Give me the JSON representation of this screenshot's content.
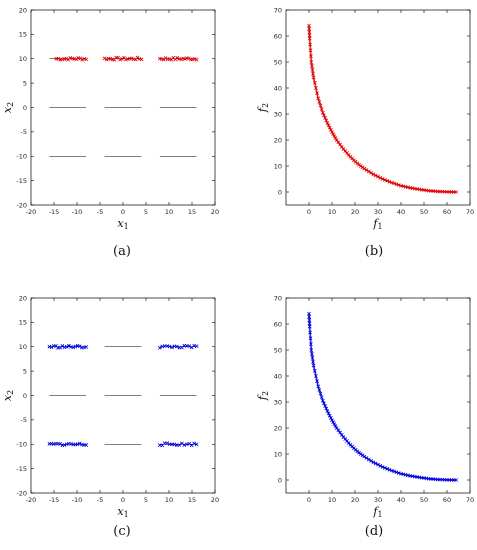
{
  "chart_data": [
    {
      "type": "scatter",
      "panel_label": "(a)",
      "xlabel": "x",
      "xlabel_sub": "1",
      "ylabel": "x",
      "ylabel_sub": "2",
      "xlim": [
        -20,
        20
      ],
      "ylim": [
        -20,
        20
      ],
      "xticks": [
        -20,
        -15,
        -10,
        -5,
        0,
        5,
        10,
        15,
        20
      ],
      "yticks": [
        -20,
        -15,
        -10,
        -5,
        0,
        5,
        10,
        15,
        20
      ],
      "grid": false,
      "color": "#e00000",
      "lines": [
        {
          "y": 10,
          "x": [
            -16,
            -8
          ]
        },
        {
          "y": 10,
          "x": [
            -4,
            4
          ]
        },
        {
          "y": 10,
          "x": [
            8,
            16
          ]
        },
        {
          "y": 0,
          "x": [
            -16,
            -8
          ]
        },
        {
          "y": 0,
          "x": [
            -4,
            4
          ]
        },
        {
          "y": 0,
          "x": [
            8,
            16
          ]
        },
        {
          "y": -10,
          "x": [
            -16,
            -8
          ]
        },
        {
          "y": -10,
          "x": [
            -4,
            4
          ]
        },
        {
          "y": -10,
          "x": [
            8,
            16
          ]
        }
      ],
      "points": [
        {
          "y": 10,
          "x_from": -14.5,
          "x_to": -8,
          "count": 16
        },
        {
          "y": 10,
          "x_from": -4,
          "x_to": 4,
          "count": 20
        },
        {
          "y": 10,
          "x_from": 8,
          "x_to": 16,
          "count": 20
        }
      ]
    },
    {
      "type": "scatter",
      "panel_label": "(b)",
      "xlabel": "f",
      "xlabel_sub": "1",
      "ylabel": "f",
      "ylabel_sub": "2",
      "xlim": [
        -10,
        70
      ],
      "ylim": [
        -5,
        70
      ],
      "xticks": [
        0,
        10,
        20,
        30,
        40,
        50,
        60,
        70
      ],
      "yticks": [
        0,
        10,
        20,
        30,
        40,
        50,
        60,
        70
      ],
      "grid": false,
      "color": "#e00000",
      "front": [
        {
          "x": 0,
          "y": 64
        },
        {
          "x": 0.3,
          "y": 59
        },
        {
          "x": 1,
          "y": 50
        },
        {
          "x": 2,
          "y": 44
        },
        {
          "x": 4,
          "y": 36
        },
        {
          "x": 6,
          "y": 30.5
        },
        {
          "x": 8,
          "y": 26.5
        },
        {
          "x": 10,
          "y": 23
        },
        {
          "x": 12,
          "y": 20
        },
        {
          "x": 15,
          "y": 16.5
        },
        {
          "x": 18,
          "y": 13.5
        },
        {
          "x": 21,
          "y": 11
        },
        {
          "x": 24,
          "y": 9
        },
        {
          "x": 28,
          "y": 6.8
        },
        {
          "x": 32,
          "y": 5
        },
        {
          "x": 36,
          "y": 3.6
        },
        {
          "x": 40,
          "y": 2.4
        },
        {
          "x": 44,
          "y": 1.6
        },
        {
          "x": 48,
          "y": 1
        },
        {
          "x": 52,
          "y": 0.5
        },
        {
          "x": 56,
          "y": 0.2
        },
        {
          "x": 60,
          "y": 0.05
        },
        {
          "x": 64,
          "y": 0
        }
      ]
    },
    {
      "type": "scatter",
      "panel_label": "(c)",
      "xlabel": "x",
      "xlabel_sub": "1",
      "ylabel": "x",
      "ylabel_sub": "2",
      "xlim": [
        -20,
        20
      ],
      "ylim": [
        -20,
        20
      ],
      "xticks": [
        -20,
        -15,
        -10,
        -5,
        0,
        5,
        10,
        15,
        20
      ],
      "yticks": [
        -20,
        -15,
        -10,
        -5,
        0,
        5,
        10,
        15,
        20
      ],
      "grid": false,
      "color": "#0000e0",
      "lines": [
        {
          "y": 10,
          "x": [
            -16,
            -8
          ]
        },
        {
          "y": 10,
          "x": [
            -4,
            4
          ]
        },
        {
          "y": 10,
          "x": [
            8,
            16
          ]
        },
        {
          "y": 0,
          "x": [
            -16,
            -8
          ]
        },
        {
          "y": 0,
          "x": [
            -4,
            4
          ]
        },
        {
          "y": 0,
          "x": [
            8,
            16
          ]
        },
        {
          "y": -10,
          "x": [
            -16,
            -8
          ]
        },
        {
          "y": -10,
          "x": [
            -4,
            4
          ]
        },
        {
          "y": -10,
          "x": [
            8,
            16
          ]
        }
      ],
      "points": [
        {
          "y": 10,
          "x_from": -16,
          "x_to": -8,
          "count": 18
        },
        {
          "y": 10,
          "x_from": 8,
          "x_to": 16,
          "count": 16
        },
        {
          "y": -10,
          "x_from": -16,
          "x_to": -8,
          "count": 18
        },
        {
          "y": -10,
          "x_from": 8,
          "x_to": 16,
          "count": 16
        }
      ]
    },
    {
      "type": "scatter",
      "panel_label": "(d)",
      "xlabel": "f",
      "xlabel_sub": "1",
      "ylabel": "f",
      "ylabel_sub": "2",
      "xlim": [
        -10,
        70
      ],
      "ylim": [
        -5,
        70
      ],
      "xticks": [
        0,
        10,
        20,
        30,
        40,
        50,
        60,
        70
      ],
      "yticks": [
        0,
        10,
        20,
        30,
        40,
        50,
        60,
        70
      ],
      "grid": false,
      "color": "#0000e0",
      "front": [
        {
          "x": 0,
          "y": 64
        },
        {
          "x": 0.3,
          "y": 59
        },
        {
          "x": 1,
          "y": 50
        },
        {
          "x": 2,
          "y": 44
        },
        {
          "x": 4,
          "y": 36
        },
        {
          "x": 6,
          "y": 30.5
        },
        {
          "x": 8,
          "y": 26.5
        },
        {
          "x": 10,
          "y": 23
        },
        {
          "x": 12,
          "y": 20
        },
        {
          "x": 15,
          "y": 16.5
        },
        {
          "x": 18,
          "y": 13.5
        },
        {
          "x": 21,
          "y": 11
        },
        {
          "x": 24,
          "y": 9
        },
        {
          "x": 28,
          "y": 6.8
        },
        {
          "x": 32,
          "y": 5
        },
        {
          "x": 36,
          "y": 3.6
        },
        {
          "x": 40,
          "y": 2.4
        },
        {
          "x": 44,
          "y": 1.6
        },
        {
          "x": 48,
          "y": 1
        },
        {
          "x": 52,
          "y": 0.5
        },
        {
          "x": 56,
          "y": 0.2
        },
        {
          "x": 60,
          "y": 0.05
        },
        {
          "x": 64,
          "y": 0
        }
      ]
    }
  ]
}
